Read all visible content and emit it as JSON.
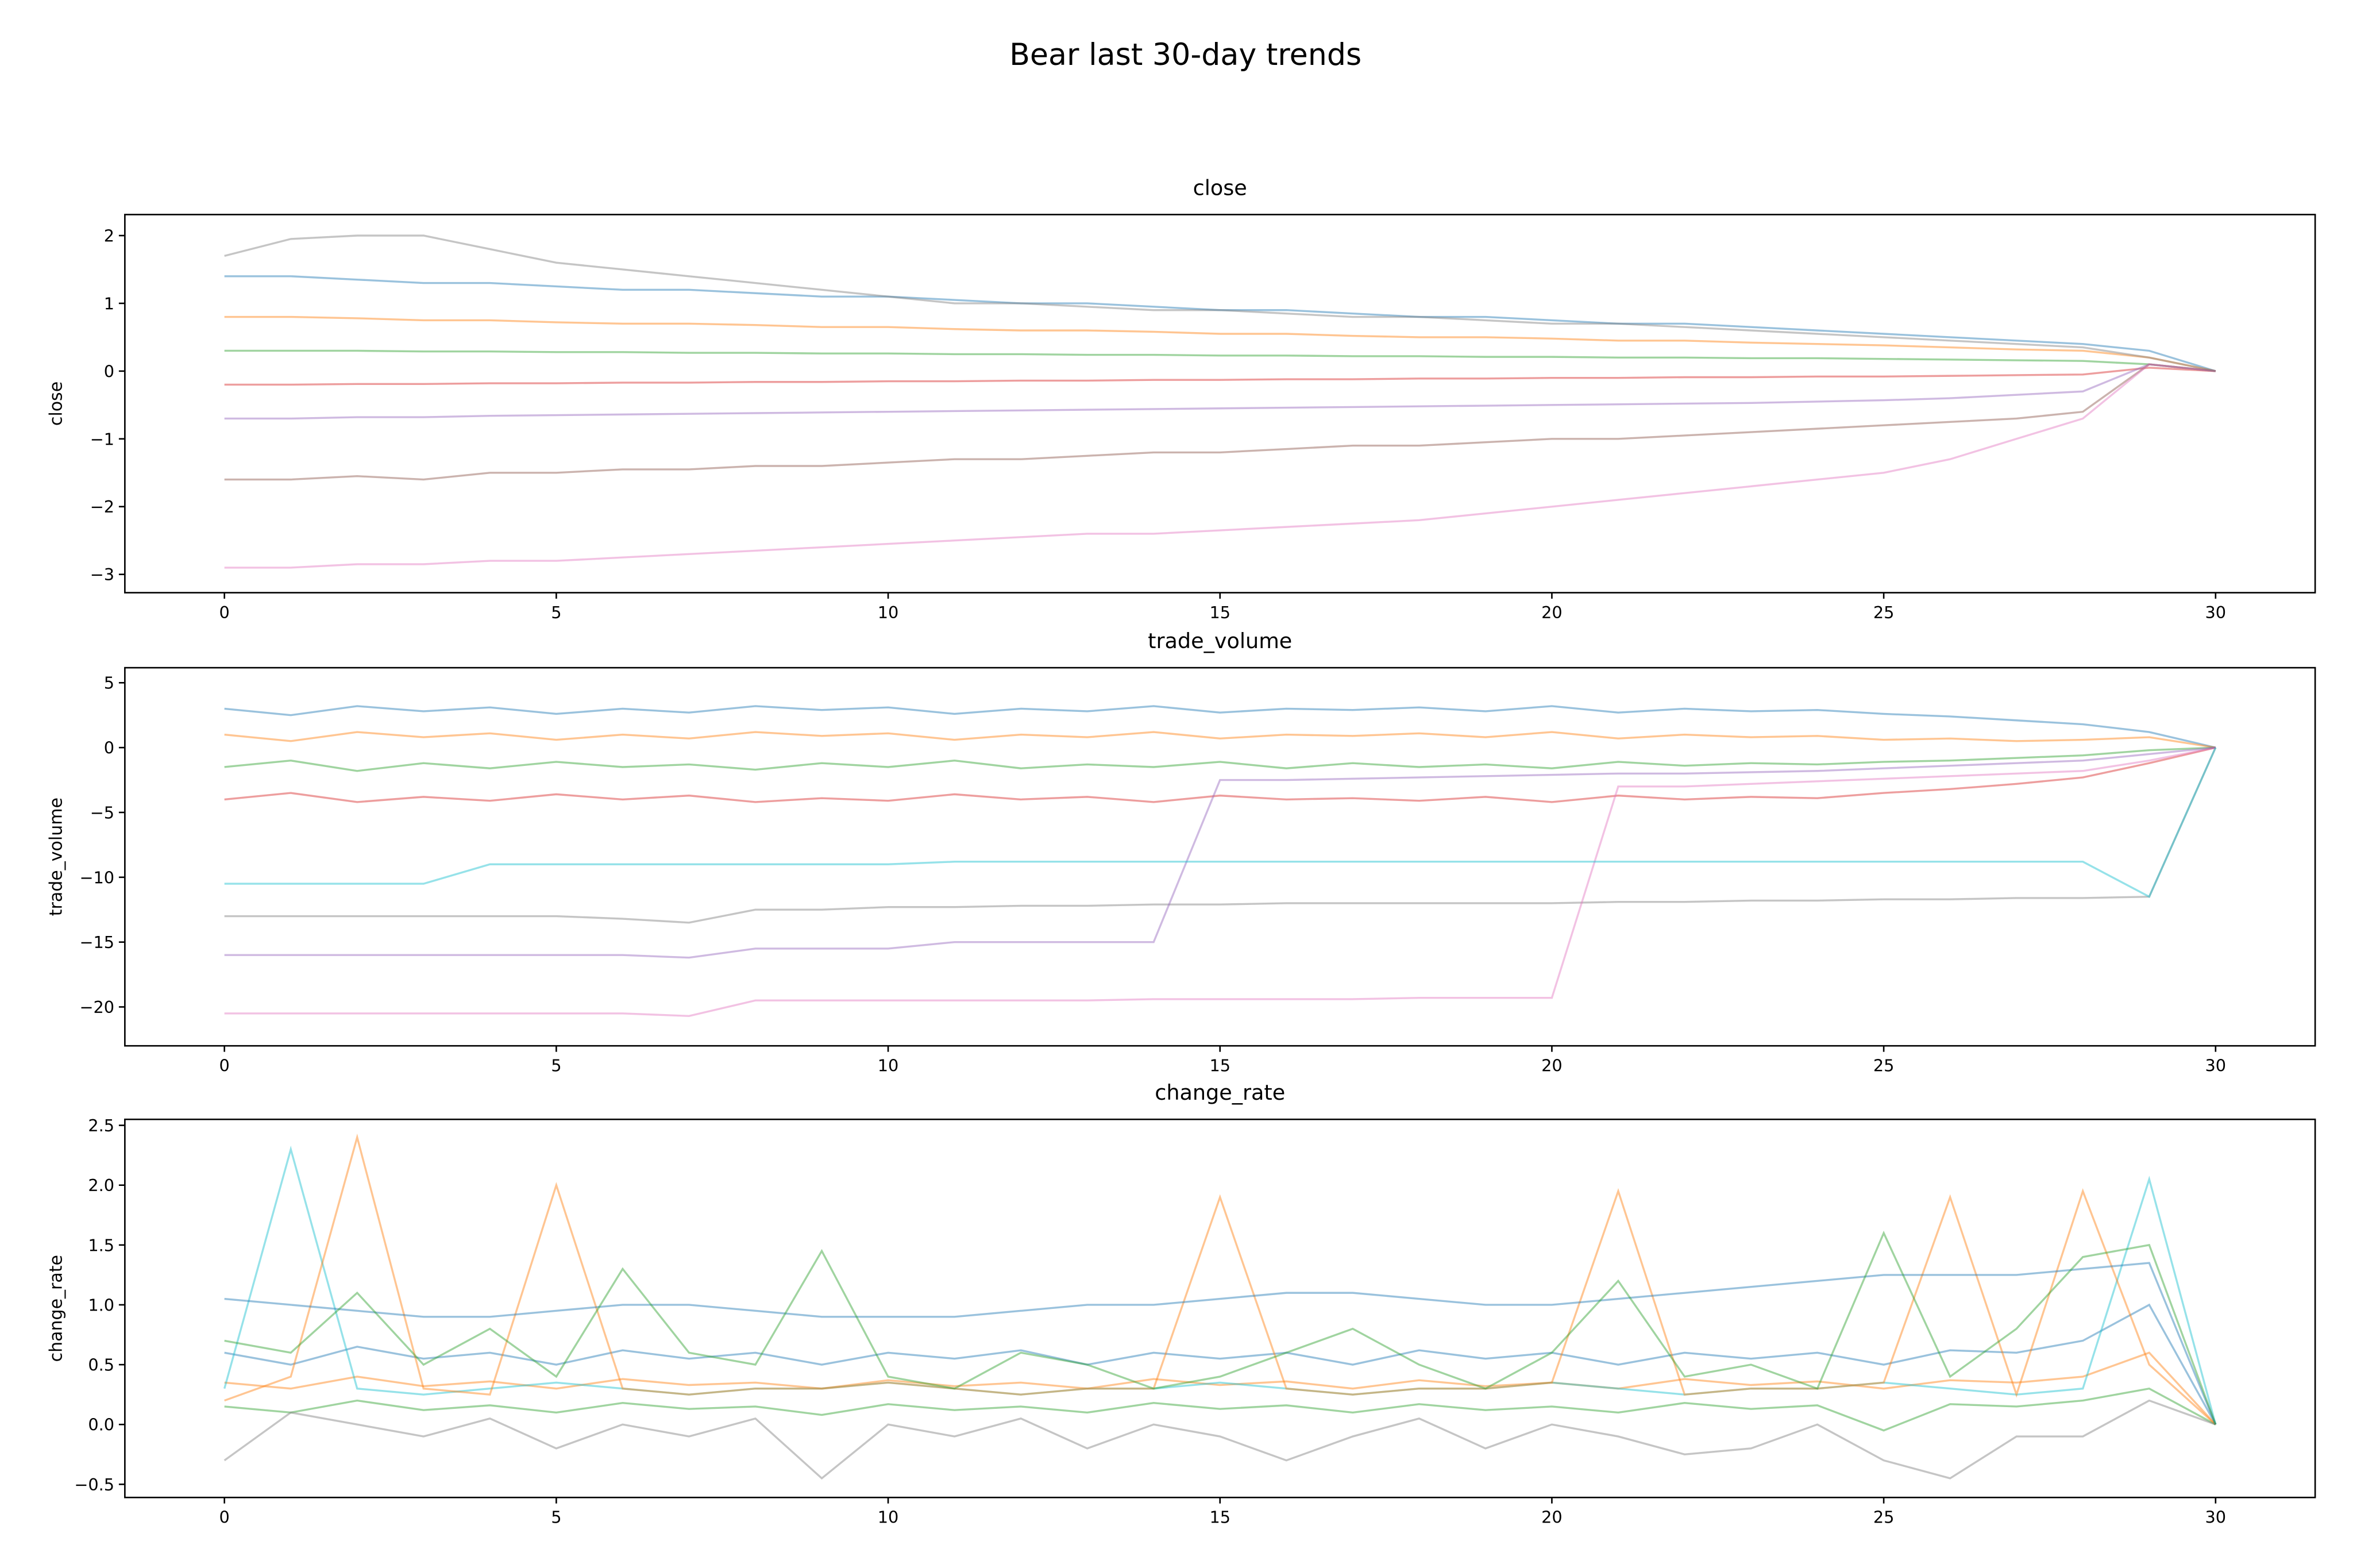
{
  "title": "Bear last 30-day trends",
  "chart_data": [
    {
      "type": "line",
      "title": "close",
      "y_label": "close",
      "x": [
        0,
        1,
        2,
        3,
        4,
        5,
        6,
        7,
        8,
        9,
        10,
        11,
        12,
        13,
        14,
        15,
        16,
        17,
        18,
        19,
        20,
        21,
        22,
        23,
        24,
        25,
        26,
        27,
        28,
        29,
        30
      ],
      "xlim": [
        -1.5,
        31.5
      ],
      "xticks": [
        0,
        5,
        10,
        15,
        20,
        25,
        30
      ],
      "ylim": [
        -3.27,
        2.31
      ],
      "yticks": [
        {
          "value": -3,
          "label": "−3"
        },
        {
          "value": -2,
          "label": "−2"
        },
        {
          "value": -1,
          "label": "−1"
        },
        0,
        1,
        2
      ],
      "series": [
        {
          "color": "#1f77b4",
          "values": [
            1.4,
            1.4,
            1.35,
            1.3,
            1.3,
            1.25,
            1.2,
            1.2,
            1.15,
            1.1,
            1.1,
            1.05,
            1.0,
            1.0,
            0.95,
            0.9,
            0.9,
            0.85,
            0.8,
            0.8,
            0.75,
            0.7,
            0.7,
            0.65,
            0.6,
            0.55,
            0.5,
            0.45,
            0.4,
            0.3,
            0
          ]
        },
        {
          "color": "#ff7f0e",
          "values": [
            0.8,
            0.8,
            0.78,
            0.75,
            0.75,
            0.72,
            0.7,
            0.7,
            0.68,
            0.65,
            0.65,
            0.62,
            0.6,
            0.6,
            0.58,
            0.55,
            0.55,
            0.52,
            0.5,
            0.5,
            0.48,
            0.45,
            0.45,
            0.42,
            0.4,
            0.38,
            0.35,
            0.32,
            0.3,
            0.2,
            0
          ]
        },
        {
          "color": "#2ca02c",
          "values": [
            0.3,
            0.3,
            0.3,
            0.29,
            0.29,
            0.28,
            0.28,
            0.27,
            0.27,
            0.26,
            0.26,
            0.25,
            0.25,
            0.24,
            0.24,
            0.23,
            0.23,
            0.22,
            0.22,
            0.21,
            0.21,
            0.2,
            0.2,
            0.19,
            0.19,
            0.18,
            0.17,
            0.16,
            0.15,
            0.1,
            0
          ]
        },
        {
          "color": "#d62728",
          "values": [
            -0.2,
            -0.2,
            -0.19,
            -0.19,
            -0.18,
            -0.18,
            -0.17,
            -0.17,
            -0.16,
            -0.16,
            -0.15,
            -0.15,
            -0.14,
            -0.14,
            -0.13,
            -0.13,
            -0.12,
            -0.12,
            -0.11,
            -0.11,
            -0.1,
            -0.1,
            -0.09,
            -0.09,
            -0.08,
            -0.08,
            -0.07,
            -0.06,
            -0.05,
            0.05,
            0
          ]
        },
        {
          "color": "#9467bd",
          "values": [
            -0.7,
            -0.7,
            -0.68,
            -0.68,
            -0.66,
            -0.65,
            -0.64,
            -0.63,
            -0.62,
            -0.61,
            -0.6,
            -0.59,
            -0.58,
            -0.57,
            -0.56,
            -0.55,
            -0.54,
            -0.53,
            -0.52,
            -0.51,
            -0.5,
            -0.49,
            -0.48,
            -0.47,
            -0.45,
            -0.43,
            -0.4,
            -0.35,
            -0.3,
            0.1,
            0
          ]
        },
        {
          "color": "#8c564b",
          "values": [
            -1.6,
            -1.6,
            -1.55,
            -1.6,
            -1.5,
            -1.5,
            -1.45,
            -1.45,
            -1.4,
            -1.4,
            -1.35,
            -1.3,
            -1.3,
            -1.25,
            -1.2,
            -1.2,
            -1.15,
            -1.1,
            -1.1,
            -1.05,
            -1.0,
            -1.0,
            -0.95,
            -0.9,
            -0.85,
            -0.8,
            -0.75,
            -0.7,
            -0.6,
            0.1,
            0
          ]
        },
        {
          "color": "#e377c2",
          "values": [
            -2.9,
            -2.9,
            -2.85,
            -2.85,
            -2.8,
            -2.8,
            -2.75,
            -2.7,
            -2.65,
            -2.6,
            -2.55,
            -2.5,
            -2.45,
            -2.4,
            -2.4,
            -2.35,
            -2.3,
            -2.25,
            -2.2,
            -2.1,
            -2.0,
            -1.9,
            -1.8,
            -1.7,
            -1.6,
            -1.5,
            -1.3,
            -1.0,
            -0.7,
            0.1,
            0
          ]
        },
        {
          "color": "#7f7f7f",
          "values": [
            1.7,
            1.95,
            2.0,
            2.0,
            1.8,
            1.6,
            1.5,
            1.4,
            1.3,
            1.2,
            1.1,
            1.0,
            1.0,
            0.95,
            0.9,
            0.9,
            0.85,
            0.8,
            0.8,
            0.75,
            0.7,
            0.7,
            0.65,
            0.6,
            0.55,
            0.5,
            0.45,
            0.4,
            0.35,
            0.2,
            0
          ]
        }
      ]
    },
    {
      "type": "line",
      "title": "trade_volume",
      "y_label": "trade_volume",
      "x": [
        0,
        1,
        2,
        3,
        4,
        5,
        6,
        7,
        8,
        9,
        10,
        11,
        12,
        13,
        14,
        15,
        16,
        17,
        18,
        19,
        20,
        21,
        22,
        23,
        24,
        25,
        26,
        27,
        28,
        29,
        30
      ],
      "xlim": [
        -1.5,
        31.5
      ],
      "xticks": [
        0,
        5,
        10,
        15,
        20,
        25,
        30
      ],
      "ylim": [
        -23.0,
        6.16
      ],
      "yticks": [
        {
          "value": -20,
          "label": "−20"
        },
        {
          "value": -15,
          "label": "−15"
        },
        {
          "value": -10,
          "label": "−10"
        },
        {
          "value": -5,
          "label": "−5"
        },
        0,
        5
      ],
      "series": [
        {
          "color": "#1f77b4",
          "values": [
            3,
            2.5,
            3.2,
            2.8,
            3.1,
            2.6,
            3,
            2.7,
            3.2,
            2.9,
            3.1,
            2.6,
            3,
            2.8,
            3.2,
            2.7,
            3,
            2.9,
            3.1,
            2.8,
            3.2,
            2.7,
            3,
            2.8,
            2.9,
            2.6,
            2.4,
            2.1,
            1.8,
            1.2,
            0
          ]
        },
        {
          "color": "#ff7f0e",
          "values": [
            1,
            0.5,
            1.2,
            0.8,
            1.1,
            0.6,
            1,
            0.7,
            1.2,
            0.9,
            1.1,
            0.6,
            1,
            0.8,
            1.2,
            0.7,
            1,
            0.9,
            1.1,
            0.8,
            1.2,
            0.7,
            1,
            0.8,
            0.9,
            0.6,
            0.7,
            0.5,
            0.6,
            0.8,
            0
          ]
        },
        {
          "color": "#2ca02c",
          "values": [
            -1.5,
            -1,
            -1.8,
            -1.2,
            -1.6,
            -1.1,
            -1.5,
            -1.3,
            -1.7,
            -1.2,
            -1.5,
            -1,
            -1.6,
            -1.3,
            -1.5,
            -1.1,
            -1.6,
            -1.2,
            -1.5,
            -1.3,
            -1.6,
            -1.1,
            -1.4,
            -1.2,
            -1.3,
            -1.1,
            -1,
            -0.8,
            -0.6,
            -0.2,
            0
          ]
        },
        {
          "color": "#d62728",
          "values": [
            -4,
            -3.5,
            -4.2,
            -3.8,
            -4.1,
            -3.6,
            -4,
            -3.7,
            -4.2,
            -3.9,
            -4.1,
            -3.6,
            -4,
            -3.8,
            -4.2,
            -3.7,
            -4,
            -3.9,
            -4.1,
            -3.8,
            -4.2,
            -3.7,
            -4,
            -3.8,
            -3.9,
            -3.5,
            -3.2,
            -2.8,
            -2.3,
            -1.2,
            0
          ]
        },
        {
          "color": "#7f7f7f",
          "values": [
            -13,
            -13,
            -13,
            -13,
            -13,
            -13,
            -13.2,
            -13.5,
            -12.5,
            -12.5,
            -12.3,
            -12.3,
            -12.2,
            -12.2,
            -12.1,
            -12.1,
            -12,
            -12,
            -12,
            -12,
            -12,
            -11.9,
            -11.9,
            -11.8,
            -11.8,
            -11.7,
            -11.7,
            -11.6,
            -11.6,
            -11.5,
            0
          ]
        },
        {
          "color": "#e377c2",
          "values": [
            -20.5,
            -20.5,
            -20.5,
            -20.5,
            -20.5,
            -20.5,
            -20.5,
            -20.7,
            -19.5,
            -19.5,
            -19.5,
            -19.5,
            -19.5,
            -19.5,
            -19.4,
            -19.4,
            -19.4,
            -19.4,
            -19.3,
            -19.3,
            -19.3,
            -3,
            -3,
            -2.8,
            -2.6,
            -2.4,
            -2.2,
            -2,
            -1.8,
            -1,
            0
          ]
        },
        {
          "color": "#9467bd",
          "values": [
            -16,
            -16,
            -16,
            -16,
            -16,
            -16,
            -16,
            -16.2,
            -15.5,
            -15.5,
            -15.5,
            -15,
            -15,
            -15,
            -15,
            -2.5,
            -2.5,
            -2.4,
            -2.3,
            -2.2,
            -2.1,
            -2,
            -2,
            -1.9,
            -1.8,
            -1.6,
            -1.4,
            -1.2,
            -1,
            -0.5,
            0
          ]
        },
        {
          "color": "#17becf",
          "values": [
            -10.5,
            -10.5,
            -10.5,
            -10.5,
            -9,
            -9,
            -9,
            -9,
            -9,
            -9,
            -9,
            -8.8,
            -8.8,
            -8.8,
            -8.8,
            -8.8,
            -8.8,
            -8.8,
            -8.8,
            -8.8,
            -8.8,
            -8.8,
            -8.8,
            -8.8,
            -8.8,
            -8.8,
            -8.8,
            -8.8,
            -8.8,
            -11.5,
            0
          ]
        }
      ]
    },
    {
      "type": "line",
      "title": "change_rate",
      "y_label": "change_rate",
      "x": [
        0,
        1,
        2,
        3,
        4,
        5,
        6,
        7,
        8,
        9,
        10,
        11,
        12,
        13,
        14,
        15,
        16,
        17,
        18,
        19,
        20,
        21,
        22,
        23,
        24,
        25,
        26,
        27,
        28,
        29,
        30
      ],
      "xlim": [
        -1.5,
        31.5
      ],
      "xticks": [
        0,
        5,
        10,
        15,
        20,
        25,
        30
      ],
      "ylim": [
        -0.61,
        2.55
      ],
      "yticks": [
        {
          "value": -0.5,
          "label": "−0.5"
        },
        {
          "value": 0,
          "label": "0.0"
        },
        0.5,
        {
          "value": 1,
          "label": "1.0"
        },
        1.5,
        {
          "value": 2,
          "label": "2.0"
        },
        2.5
      ],
      "series": [
        {
          "color": "#1f77b4",
          "values": [
            0.6,
            0.5,
            0.65,
            0.55,
            0.6,
            0.5,
            0.62,
            0.55,
            0.6,
            0.5,
            0.6,
            0.55,
            0.62,
            0.5,
            0.6,
            0.55,
            0.6,
            0.5,
            0.62,
            0.55,
            0.6,
            0.5,
            0.6,
            0.55,
            0.6,
            0.5,
            0.62,
            0.6,
            0.7,
            1.0,
            0
          ]
        },
        {
          "color": "#ff7f0e",
          "values": [
            0.35,
            0.3,
            0.4,
            0.32,
            0.36,
            0.3,
            0.38,
            0.33,
            0.35,
            0.3,
            0.37,
            0.32,
            0.35,
            0.3,
            0.38,
            0.33,
            0.36,
            0.3,
            0.37,
            0.32,
            0.35,
            0.3,
            0.38,
            0.33,
            0.36,
            0.3,
            0.37,
            0.35,
            0.4,
            0.6,
            0
          ]
        },
        {
          "color": "#2ca02c",
          "values": [
            0.15,
            0.1,
            0.2,
            0.12,
            0.16,
            0.1,
            0.18,
            0.13,
            0.15,
            0.08,
            0.17,
            0.12,
            0.15,
            0.1,
            0.18,
            0.13,
            0.16,
            0.1,
            0.17,
            0.12,
            0.15,
            0.1,
            0.18,
            0.13,
            0.16,
            -0.05,
            0.17,
            0.15,
            0.2,
            0.3,
            0
          ]
        },
        {
          "color": "#17becf",
          "values": [
            0.3,
            2.3,
            0.3,
            0.25,
            0.3,
            0.35,
            0.3,
            0.25,
            0.3,
            0.3,
            0.35,
            0.3,
            0.25,
            0.3,
            0.3,
            0.35,
            0.3,
            0.25,
            0.3,
            0.3,
            0.35,
            0.3,
            0.25,
            0.3,
            0.3,
            0.35,
            0.3,
            0.25,
            0.3,
            2.05,
            0
          ]
        },
        {
          "color": "#ff7f0e",
          "values": [
            0.2,
            0.4,
            2.4,
            0.3,
            0.25,
            2.0,
            0.3,
            0.25,
            0.3,
            0.3,
            0.35,
            0.3,
            0.25,
            0.3,
            0.3,
            1.9,
            0.3,
            0.25,
            0.3,
            0.3,
            0.35,
            1.95,
            0.25,
            0.3,
            0.3,
            0.35,
            1.9,
            0.25,
            1.95,
            0.5,
            0
          ]
        },
        {
          "color": "#7f7f7f",
          "values": [
            -0.3,
            0.1,
            0,
            -0.1,
            0.05,
            -0.2,
            0,
            -0.1,
            0.05,
            -0.45,
            0,
            -0.1,
            0.05,
            -0.2,
            0,
            -0.1,
            -0.3,
            -0.1,
            0.05,
            -0.2,
            0,
            -0.1,
            -0.25,
            -0.2,
            0,
            -0.3,
            -0.45,
            -0.1,
            -0.1,
            0.2,
            0
          ]
        },
        {
          "color": "#1f77b4",
          "values": [
            1.05,
            1.0,
            0.95,
            0.9,
            0.9,
            0.95,
            1.0,
            1.0,
            0.95,
            0.9,
            0.9,
            0.9,
            0.95,
            1.0,
            1.0,
            1.05,
            1.1,
            1.1,
            1.05,
            1.0,
            1.0,
            1.05,
            1.1,
            1.15,
            1.2,
            1.25,
            1.25,
            1.25,
            1.3,
            1.35,
            0
          ]
        },
        {
          "color": "#2ca02c",
          "values": [
            0.7,
            0.6,
            1.1,
            0.5,
            0.8,
            0.4,
            1.3,
            0.6,
            0.5,
            1.45,
            0.4,
            0.3,
            0.6,
            0.5,
            0.3,
            0.4,
            0.6,
            0.8,
            0.5,
            0.3,
            0.6,
            1.2,
            0.4,
            0.5,
            0.3,
            1.6,
            0.4,
            0.8,
            1.4,
            1.5,
            0
          ]
        }
      ]
    }
  ]
}
